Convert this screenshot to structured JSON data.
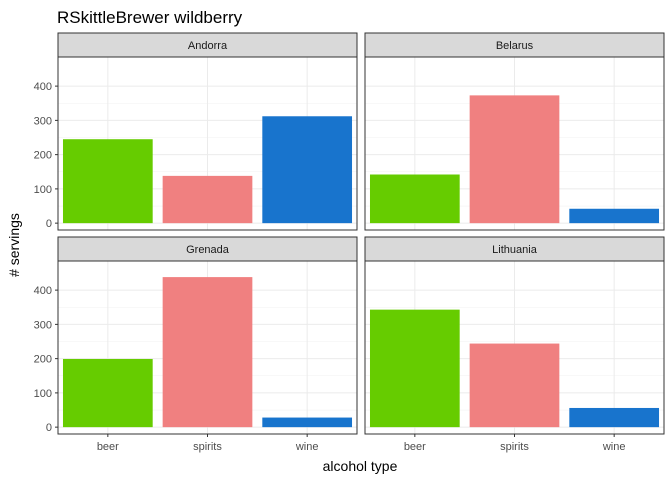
{
  "chart_data": {
    "type": "bar",
    "title": "RSkittleBrewer wildberry",
    "xlabel": "alcohol type",
    "ylabel": "# servings",
    "categories": [
      "beer",
      "spirits",
      "wine"
    ],
    "ylim": [
      -20,
      485
    ],
    "yticks": [
      0,
      100,
      200,
      300,
      400
    ],
    "grid": true,
    "legend": "none",
    "colors": {
      "beer": "#66CC00",
      "spirits": "#F08080",
      "wine": "#1874CD"
    },
    "facets": [
      {
        "name": "Andorra",
        "values": [
          245,
          138,
          312
        ]
      },
      {
        "name": "Belarus",
        "values": [
          142,
          373,
          42
        ]
      },
      {
        "name": "Grenada",
        "values": [
          199,
          438,
          28
        ]
      },
      {
        "name": "Lithuania",
        "values": [
          343,
          244,
          56
        ]
      }
    ]
  }
}
